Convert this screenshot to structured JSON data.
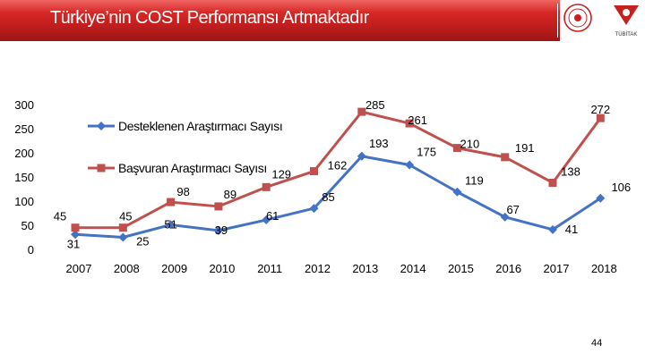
{
  "header": {
    "title": "Türkiye’nin COST Performansı Artmaktadır",
    "logo_text": "TÜBİTAK"
  },
  "footer": {
    "page_number": "44"
  },
  "chart_data": {
    "type": "line",
    "categories": [
      "2007",
      "2008",
      "2009",
      "2010",
      "2011",
      "2012",
      "2013",
      "2014",
      "2015",
      "2016",
      "2017",
      "2018"
    ],
    "series": [
      {
        "name": "Desteklenen Araştırmacı Sayısı",
        "color": "#4472c4",
        "values": [
          31,
          25,
          51,
          39,
          61,
          85,
          193,
          175,
          119,
          67,
          41,
          106
        ]
      },
      {
        "name": "Başvuran Araştırmacı Sayısı",
        "color": "#c0504d",
        "values": [
          45,
          45,
          98,
          89,
          129,
          162,
          285,
          261,
          210,
          191,
          138,
          272
        ]
      }
    ],
    "y_ticks": [
      "0",
      "50",
      "100",
      "150",
      "200",
      "250",
      "300"
    ],
    "ylim": [
      0,
      300
    ],
    "legend_position": "top-left inside plot",
    "grid": false
  }
}
